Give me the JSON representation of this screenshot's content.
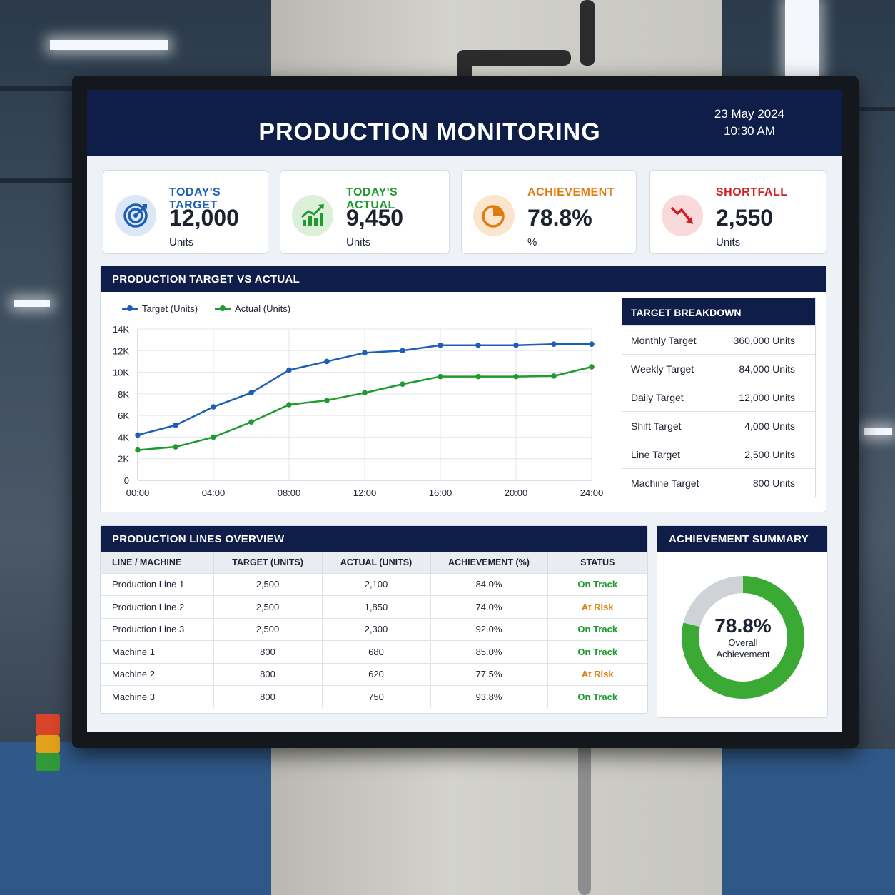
{
  "header": {
    "title": "PRODUCTION MONITORING",
    "date": "23 May 2024",
    "time": "10:30 AM"
  },
  "kpis": [
    {
      "label": "TODAY'S TARGET",
      "value": "12,000",
      "unit": "Units",
      "icon": "target-icon",
      "color": "#1e5fb4"
    },
    {
      "label": "TODAY'S ACTUAL",
      "value": "9,450",
      "unit": "Units",
      "icon": "trending-up-icon",
      "color": "#1f9a2e"
    },
    {
      "label": "ACHIEVEMENT",
      "value": "78.8%",
      "unit": "%",
      "icon": "pie-chart-icon",
      "color": "#e07b12"
    },
    {
      "label": "SHORTFALL",
      "value": "2,550",
      "unit": "Units",
      "icon": "trending-down-icon",
      "color": "#d01e22"
    }
  ],
  "production_chart": {
    "header": "PRODUCTION TARGET VS ACTUAL",
    "legend": [
      "Target (Units)",
      "Actual (Units)"
    ]
  },
  "chart_data": {
    "type": "line",
    "x": [
      "00:00",
      "02:00",
      "04:00",
      "06:00",
      "08:00",
      "10:00",
      "12:00",
      "14:00",
      "16:00",
      "18:00",
      "20:00",
      "22:00",
      "24:00"
    ],
    "xticks": [
      "00:00",
      "04:00",
      "08:00",
      "12:00",
      "16:00",
      "20:00",
      "24:00"
    ],
    "yticks": [
      "0",
      "2K",
      "4K",
      "6K",
      "8K",
      "10K",
      "12K",
      "14K"
    ],
    "ylim": [
      0,
      14000
    ],
    "grid": true,
    "legend_position": "top-left",
    "series": [
      {
        "name": "Target (Units)",
        "color": "#1e5fb4",
        "values": [
          4200,
          5100,
          6800,
          8100,
          10200,
          11000,
          11800,
          12000,
          12500,
          12500,
          12500,
          12600,
          12600
        ]
      },
      {
        "name": "Actual (Units)",
        "color": "#1f9a2e",
        "values": [
          2800,
          3100,
          4000,
          5400,
          7000,
          7400,
          8100,
          8900,
          9600,
          9600,
          9600,
          9650,
          10500
        ]
      }
    ]
  },
  "breakdown": {
    "header": "TARGET BREAKDOWN",
    "rows": [
      {
        "label": "Monthly Target",
        "value": "360,000 Units"
      },
      {
        "label": "Weekly Target",
        "value": "84,000 Units"
      },
      {
        "label": "Daily Target",
        "value": "12,000 Units"
      },
      {
        "label": "Shift Target",
        "value": "4,000 Units"
      },
      {
        "label": "Line Target",
        "value": "2,500 Units"
      },
      {
        "label": "Machine Target",
        "value": "800 Units"
      }
    ]
  },
  "lines_overview": {
    "header": "PRODUCTION LINES OVERVIEW",
    "columns": [
      "LINE / MACHINE",
      "TARGET (UNITS)",
      "ACTUAL (UNITS)",
      "ACHIEVEMENT (%)",
      "STATUS"
    ],
    "rows": [
      [
        "Production Line 1",
        "2,500",
        "2,100",
        "84.0%",
        "On Track"
      ],
      [
        "Production Line 2",
        "2,500",
        "1,850",
        "74.0%",
        "At Risk"
      ],
      [
        "Production Line 3",
        "2,500",
        "2,300",
        "92.0%",
        "On Track"
      ],
      [
        "Machine 1",
        "800",
        "680",
        "85.0%",
        "On Track"
      ],
      [
        "Machine 2",
        "800",
        "620",
        "77.5%",
        "At Risk"
      ],
      [
        "Machine 3",
        "800",
        "750",
        "93.8%",
        "On Track"
      ]
    ]
  },
  "achievement_summary": {
    "header": "ACHIEVEMENT SUMMARY",
    "value": "78.8%",
    "label_line1": "Overall",
    "label_line2": "Achievement",
    "fraction": 0.788,
    "fill_color": "#3aaa35",
    "rest_color": "#cfd2d6"
  }
}
